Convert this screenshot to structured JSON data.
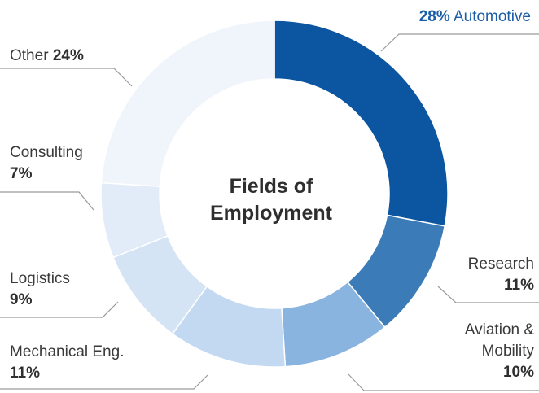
{
  "chart_data": {
    "type": "pie",
    "title_line1": "Fields of",
    "title_line2": "Employment",
    "categories": [
      "Automotive",
      "Research",
      "Aviation & Mobility",
      "Mechanical Eng.",
      "Logistics",
      "Consulting",
      "Other"
    ],
    "values": [
      28,
      11,
      10,
      11,
      9,
      7,
      24
    ],
    "percent_labels": [
      "28%",
      "11%",
      "10%",
      "11%",
      "9%",
      "7%",
      "24%"
    ],
    "colors": [
      "#0c55a0",
      "#3b7bb8",
      "#8ab4e0",
      "#c3d9f1",
      "#d4e4f5",
      "#e2ecf8",
      "#f0f5fb"
    ],
    "label_lines": {
      "automotive": "Automotive",
      "research": "Research",
      "aviation_1": "Aviation &",
      "aviation_2": "Mobility",
      "mechanical": "Mechanical Eng.",
      "logistics": "Logistics",
      "consulting": "Consulting",
      "other": "Other"
    },
    "connector_color": "#9a9a9a"
  }
}
